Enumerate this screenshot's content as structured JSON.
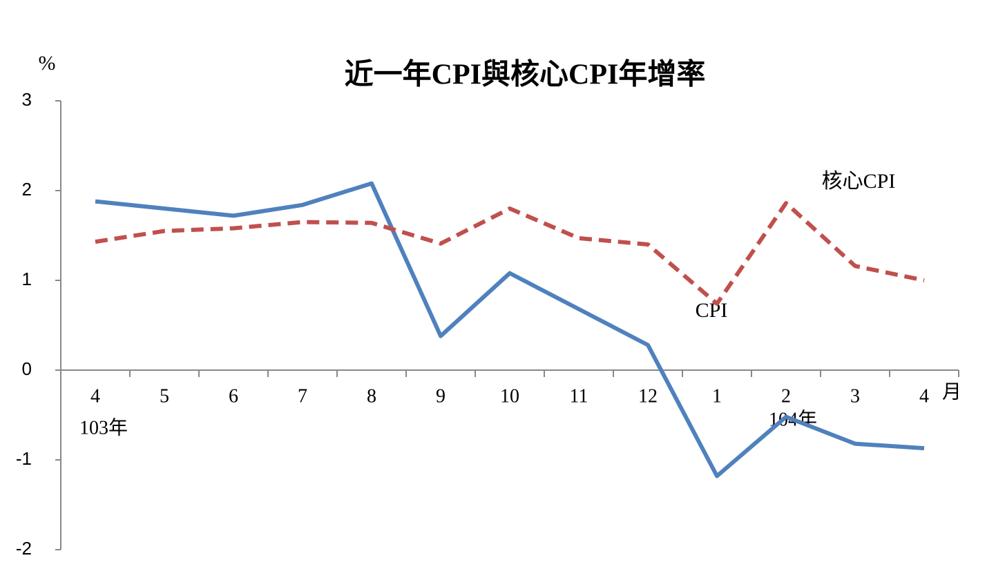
{
  "chart_data": {
    "type": "line",
    "title": "近一年CPI與核心CPI年增率",
    "y_unit": "%",
    "x_unit": "月",
    "categories": [
      "4",
      "5",
      "6",
      "7",
      "8",
      "9",
      "10",
      "11",
      "12",
      "1",
      "2",
      "3",
      "4"
    ],
    "year_labels": [
      "103年",
      "104年"
    ],
    "series": [
      {
        "name": "CPI",
        "color": "#4f81bd",
        "dashed": false,
        "values": [
          1.88,
          1.8,
          1.72,
          1.84,
          2.08,
          0.38,
          1.08,
          0.68,
          0.28,
          -1.18,
          -0.52,
          -0.82,
          -0.87
        ]
      },
      {
        "name": "核心CPI",
        "color": "#c0504d",
        "dashed": true,
        "values": [
          1.43,
          1.55,
          1.58,
          1.65,
          1.64,
          1.41,
          1.8,
          1.47,
          1.4,
          0.74,
          1.86,
          1.16,
          1.0
        ]
      }
    ],
    "ylim": [
      -2,
      3
    ],
    "yticks": [
      -2,
      -1,
      0,
      1,
      2,
      3
    ]
  }
}
